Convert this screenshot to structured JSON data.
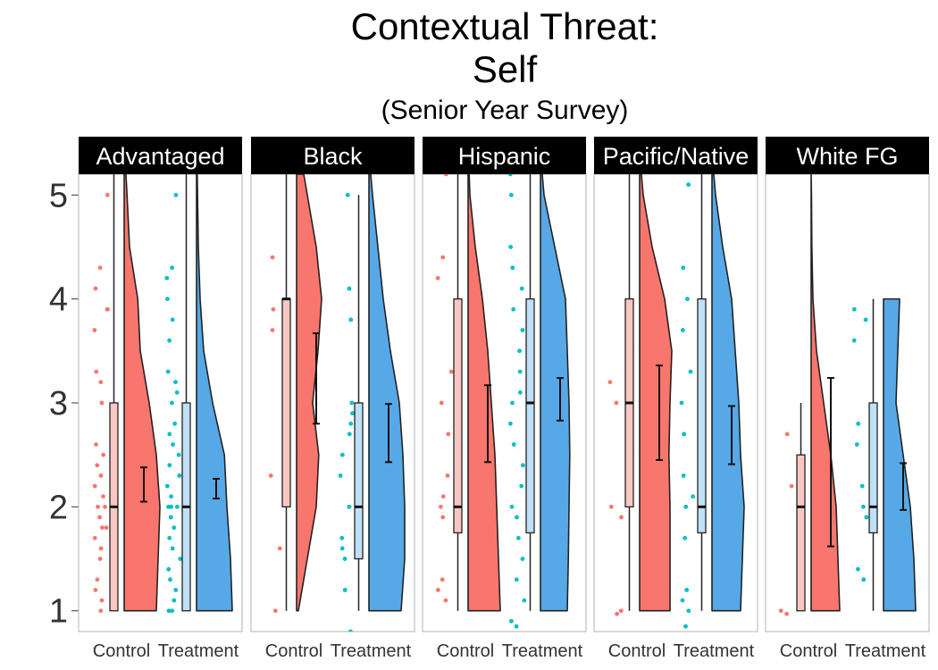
{
  "title": {
    "line1": "Contextual Threat:",
    "line2": "Self",
    "subtitle": "(Senior Year Survey)"
  },
  "colors": {
    "control": "#F8766D",
    "treatment": "#00BFC4",
    "control_fill": "#F8766D",
    "treatment_fill": "#56A9E6",
    "strip": "#000000"
  },
  "chart_data": {
    "type": "raincloud",
    "ylim": [
      0.8,
      5.2
    ],
    "yticks": [
      1,
      2,
      3,
      4,
      5
    ],
    "categories": [
      "Control",
      "Treatment"
    ],
    "panels": [
      {
        "name": "Advantaged",
        "groups": [
          {
            "group": "Control",
            "box": {
              "min": 1,
              "q1": 1,
              "median": 2,
              "q3": 3,
              "max": 5.2
            },
            "mean": 2.2,
            "ci": [
              2.05,
              2.38
            ],
            "density": [
              [
                1,
                0.9
              ],
              [
                1.5,
                0.95
              ],
              [
                2,
                1.0
              ],
              [
                2.5,
                0.9
              ],
              [
                3,
                0.7
              ],
              [
                3.5,
                0.45
              ],
              [
                4,
                0.38
              ],
              [
                4.5,
                0.15
              ],
              [
                5,
                0.08
              ],
              [
                5.2,
                0.05
              ]
            ],
            "points": [
              1.0,
              1.1,
              1.2,
              1.3,
              1.5,
              1.6,
              1.7,
              1.8,
              1.8,
              1.9,
              2.0,
              2.0,
              2.1,
              2.2,
              2.3,
              2.4,
              2.5,
              2.6,
              3.0,
              3.2,
              3.3,
              3.7,
              3.9,
              3.9,
              4.1,
              4.3,
              5.0
            ]
          },
          {
            "group": "Treatment",
            "box": {
              "min": 1,
              "q1": 1,
              "median": 2,
              "q3": 3,
              "max": 5.2
            },
            "mean": 2.18,
            "ci": [
              2.08,
              2.27
            ],
            "density": [
              [
                1,
                1.0
              ],
              [
                1.5,
                0.95
              ],
              [
                2,
                0.85
              ],
              [
                2.5,
                0.78
              ],
              [
                3,
                0.45
              ],
              [
                3.5,
                0.2
              ],
              [
                4,
                0.1
              ],
              [
                4.5,
                0.05
              ],
              [
                5.2,
                0.02
              ]
            ],
            "points": [
              1.0,
              1.0,
              1.1,
              1.2,
              1.3,
              1.4,
              1.5,
              1.6,
              1.7,
              1.8,
              1.9,
              2.0,
              2.0,
              2.0,
              2.1,
              2.2,
              2.3,
              2.4,
              2.5,
              2.6,
              2.7,
              2.8,
              3.0,
              3.1,
              3.2,
              3.3,
              3.6,
              3.8,
              4.0,
              4.2,
              4.3,
              5.0
            ]
          }
        ]
      },
      {
        "name": "Black",
        "groups": [
          {
            "group": "Control",
            "box": {
              "min": 1,
              "q1": 2,
              "median": 4,
              "q3": 4,
              "max": 5.2
            },
            "mean": 3.22,
            "ci": [
              2.8,
              3.67
            ],
            "density": [
              [
                1,
                0.05
              ],
              [
                1.5,
                0.3
              ],
              [
                2,
                0.55
              ],
              [
                2.5,
                0.62
              ],
              [
                3,
                0.45
              ],
              [
                3.5,
                0.6
              ],
              [
                4,
                0.7
              ],
              [
                4.5,
                0.55
              ],
              [
                5,
                0.3
              ],
              [
                5.2,
                0.2
              ]
            ],
            "points": [
              1.0,
              1.6,
              2.3,
              3.7,
              3.9,
              4.4
            ]
          },
          {
            "group": "Treatment",
            "box": {
              "min": 1,
              "q1": 1.5,
              "median": 2,
              "q3": 3,
              "max": 5
            },
            "mean": 2.7,
            "ci": [
              2.43,
              2.99
            ],
            "density": [
              [
                1,
                0.9
              ],
              [
                1.5,
                1.0
              ],
              [
                2,
                1.0
              ],
              [
                2.5,
                0.95
              ],
              [
                3,
                0.85
              ],
              [
                3.5,
                0.6
              ],
              [
                4,
                0.4
              ],
              [
                4.5,
                0.25
              ],
              [
                5,
                0.1
              ],
              [
                5.2,
                0.05
              ]
            ],
            "points": [
              0.8,
              1.2,
              1.5,
              1.6,
              1.7,
              2.0,
              2.3,
              2.5,
              2.7,
              2.8,
              2.9,
              3.0,
              3.8,
              4.1,
              5.0
            ]
          }
        ]
      },
      {
        "name": "Hispanic",
        "groups": [
          {
            "group": "Control",
            "box": {
              "min": 1,
              "q1": 1.75,
              "median": 2,
              "q3": 4,
              "max": 5.2
            },
            "mean": 2.8,
            "ci": [
              2.43,
              3.17
            ],
            "density": [
              [
                1,
                0.9
              ],
              [
                1.5,
                0.85
              ],
              [
                2,
                0.8
              ],
              [
                2.5,
                0.75
              ],
              [
                3,
                0.65
              ],
              [
                3.5,
                0.55
              ],
              [
                4,
                0.4
              ],
              [
                4.5,
                0.2
              ],
              [
                5,
                0.05
              ],
              [
                5.2,
                0.03
              ]
            ],
            "points": [
              1.1,
              1.2,
              1.3,
              1.9,
              2.0,
              2.1,
              2.3,
              2.7,
              3.0,
              3.3,
              4.2,
              4.4,
              5.2
            ]
          },
          {
            "group": "Treatment",
            "box": {
              "min": 1,
              "q1": 1.75,
              "median": 3,
              "q3": 4,
              "max": 5.2
            },
            "mean": 3.03,
            "ci": [
              2.83,
              3.24
            ],
            "density": [
              [
                1,
                0.75
              ],
              [
                1.5,
                0.78
              ],
              [
                2,
                0.8
              ],
              [
                2.5,
                0.82
              ],
              [
                3,
                0.8
              ],
              [
                3.5,
                0.75
              ],
              [
                4,
                0.7
              ],
              [
                4.5,
                0.4
              ],
              [
                5,
                0.1
              ],
              [
                5.2,
                0.05
              ]
            ],
            "points": [
              0.85,
              0.9,
              1.1,
              1.3,
              1.5,
              1.7,
              1.9,
              2.0,
              2.2,
              2.4,
              2.6,
              2.8,
              3.0,
              3.1,
              3.3,
              3.5,
              3.7,
              3.9,
              4.1,
              4.3,
              4.5,
              5.0,
              5.2
            ]
          }
        ]
      },
      {
        "name": "Pacific/Native",
        "groups": [
          {
            "group": "Control",
            "box": {
              "min": 1,
              "q1": 2,
              "median": 3,
              "q3": 4,
              "max": 5.2
            },
            "mean": 2.9,
            "ci": [
              2.45,
              3.36
            ],
            "density": [
              [
                1,
                0.85
              ],
              [
                1.5,
                0.85
              ],
              [
                2,
                0.85
              ],
              [
                2.5,
                0.82
              ],
              [
                3,
                0.85
              ],
              [
                3.5,
                0.9
              ],
              [
                4,
                0.7
              ],
              [
                4.5,
                0.35
              ],
              [
                5,
                0.1
              ],
              [
                5.2,
                0.05
              ]
            ],
            "points": [
              0.97,
              1.0,
              1.9,
              2.0,
              3.0,
              3.2
            ]
          },
          {
            "group": "Treatment",
            "box": {
              "min": 1,
              "q1": 1.75,
              "median": 2,
              "q3": 4,
              "max": 5.2
            },
            "mean": 2.69,
            "ci": [
              2.41,
              2.97
            ],
            "density": [
              [
                1,
                0.8
              ],
              [
                1.5,
                0.85
              ],
              [
                2,
                0.9
              ],
              [
                2.5,
                0.8
              ],
              [
                3,
                0.75
              ],
              [
                3.5,
                0.65
              ],
              [
                4,
                0.55
              ],
              [
                4.5,
                0.3
              ],
              [
                5,
                0.1
              ],
              [
                5.2,
                0.05
              ]
            ],
            "points": [
              0.85,
              1.0,
              1.1,
              1.2,
              1.7,
              2.0,
              2.1,
              2.3,
              2.7,
              3.0,
              3.3,
              3.7,
              4.0,
              4.3,
              5.1
            ]
          }
        ]
      },
      {
        "name": "White FG",
        "groups": [
          {
            "group": "Control",
            "box": {
              "min": 1,
              "q1": 1,
              "median": 2,
              "q3": 2.5,
              "max": 3
            },
            "mean": 2.43,
            "ci": [
              1.62,
              3.24
            ],
            "density": [
              [
                1,
                0.8
              ],
              [
                1.5,
                0.75
              ],
              [
                2,
                0.7
              ],
              [
                2.5,
                0.55
              ],
              [
                3,
                0.35
              ],
              [
                3.5,
                0.15
              ],
              [
                4,
                0.05
              ],
              [
                4.5,
                0.02
              ],
              [
                5,
                0.01
              ],
              [
                5.2,
                0.0
              ]
            ],
            "points": [
              0.97,
              1.0,
              2.2,
              2.7
            ]
          },
          {
            "group": "Treatment",
            "box": {
              "min": 1,
              "q1": 1.75,
              "median": 2,
              "q3": 3,
              "max": 4
            },
            "mean": 2.2,
            "ci": [
              1.97,
              2.42
            ],
            "density": [
              [
                1,
                0.9
              ],
              [
                1.5,
                0.85
              ],
              [
                2,
                0.75
              ],
              [
                2.5,
                0.55
              ],
              [
                3,
                0.35
              ],
              [
                3.5,
                0.4
              ],
              [
                4,
                0.45
              ]
            ],
            "points": [
              1.3,
              1.4,
              1.9,
              2.0,
              2.2,
              2.6,
              2.8,
              3.6,
              3.8,
              3.9
            ]
          }
        ]
      }
    ]
  }
}
